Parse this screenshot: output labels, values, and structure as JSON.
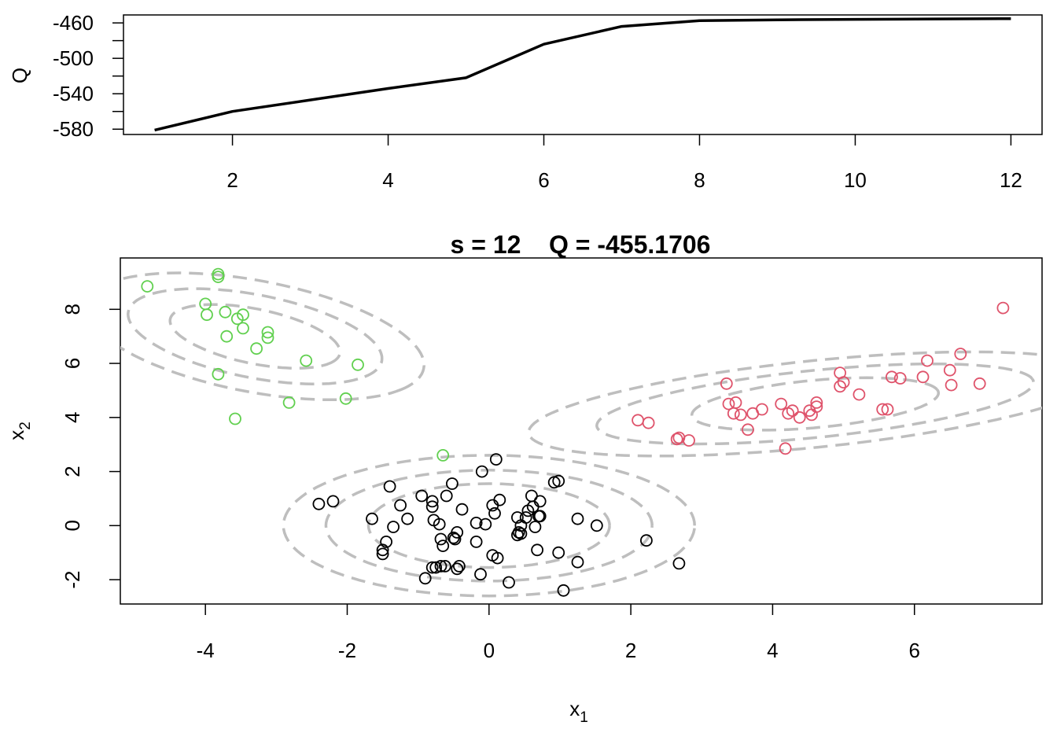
{
  "chart_data": [
    {
      "type": "line",
      "ylabel": "Q",
      "xlim": [
        0.6,
        12.4
      ],
      "ylim": [
        -586,
        -451
      ],
      "xticks": [
        2,
        4,
        6,
        8,
        10,
        12
      ],
      "yticks": [
        -460,
        -500,
        -540,
        -580
      ],
      "ytick_labels": [
        "-460",
        "-500",
        "-540",
        "-580"
      ],
      "xtick_labels": [
        "2",
        "4",
        "6",
        "8",
        "10",
        "12"
      ],
      "x": [
        1,
        2,
        3,
        4,
        5,
        6,
        7,
        8,
        9,
        10,
        11,
        12
      ],
      "y": [
        -581,
        -560,
        -547,
        -534,
        -522,
        -484,
        -464,
        -457.5,
        -456.5,
        -456,
        -455.5,
        -455.2
      ],
      "line_color": "#000000"
    },
    {
      "type": "scatter",
      "title_s": "s = 12",
      "title_q": "Q = -455.1706",
      "xlabel": "x",
      "xlabel_sub": "1",
      "ylabel": "x",
      "ylabel_sub": "2",
      "xlim": [
        -5.2,
        7.8
      ],
      "ylim": [
        -2.9,
        9.9
      ],
      "xticks": [
        -4,
        -2,
        0,
        2,
        4,
        6
      ],
      "xtick_labels": [
        "-4",
        "-2",
        "0",
        "2",
        "4",
        "6"
      ],
      "yticks": [
        -2,
        0,
        2,
        4,
        6,
        8
      ],
      "ytick_labels": [
        "-2",
        "0",
        "2",
        "4",
        "6",
        "8"
      ],
      "contour_color": "#bebebe",
      "series": [
        {
          "color": "#000000",
          "points": [
            [
              -2.4,
              0.8
            ],
            [
              -2.2,
              0.9
            ],
            [
              -1.65,
              0.25
            ],
            [
              -1.5,
              -0.9
            ],
            [
              -1.5,
              -1.05
            ],
            [
              -1.45,
              -0.6
            ],
            [
              -1.4,
              1.45
            ],
            [
              -1.35,
              -0.05
            ],
            [
              -1.25,
              0.75
            ],
            [
              -1.15,
              0.25
            ],
            [
              -0.95,
              1.1
            ],
            [
              -0.9,
              -1.95
            ],
            [
              -0.8,
              -1.55
            ],
            [
              -0.8,
              0.7
            ],
            [
              -0.8,
              0.9
            ],
            [
              -0.78,
              0.2
            ],
            [
              -0.75,
              -1.55
            ],
            [
              -0.7,
              0.05
            ],
            [
              -0.68,
              -1.5
            ],
            [
              -0.68,
              -0.5
            ],
            [
              -0.65,
              -0.75
            ],
            [
              -0.62,
              -1.5
            ],
            [
              -0.6,
              1.1
            ],
            [
              -0.52,
              1.55
            ],
            [
              -0.5,
              -0.45
            ],
            [
              -0.48,
              -0.5
            ],
            [
              -0.45,
              -0.25
            ],
            [
              -0.45,
              -1.6
            ],
            [
              -0.42,
              -1.5
            ],
            [
              -0.38,
              0.6
            ],
            [
              -0.18,
              -0.6
            ],
            [
              -0.18,
              0.1
            ],
            [
              -0.12,
              -1.8
            ],
            [
              -0.1,
              2.0
            ],
            [
              -0.05,
              0.05
            ],
            [
              0.05,
              -1.1
            ],
            [
              0.05,
              0.75
            ],
            [
              0.08,
              0.45
            ],
            [
              0.1,
              2.45
            ],
            [
              0.12,
              -1.2
            ],
            [
              0.15,
              0.95
            ],
            [
              0.28,
              -2.1
            ],
            [
              0.4,
              0.3
            ],
            [
              0.4,
              -0.35
            ],
            [
              0.42,
              -0.25
            ],
            [
              0.45,
              -0.3
            ],
            [
              0.45,
              0.0
            ],
            [
              0.52,
              0.3
            ],
            [
              0.55,
              0.55
            ],
            [
              0.6,
              1.1
            ],
            [
              0.62,
              0.7
            ],
            [
              0.65,
              -0.05
            ],
            [
              0.68,
              -0.9
            ],
            [
              0.7,
              0.35
            ],
            [
              0.72,
              0.35
            ],
            [
              0.72,
              0.9
            ],
            [
              0.92,
              1.6
            ],
            [
              0.98,
              1.65
            ],
            [
              0.98,
              -1.0
            ],
            [
              1.05,
              -2.4
            ],
            [
              1.25,
              -1.35
            ],
            [
              1.25,
              0.25
            ],
            [
              1.52,
              0.0
            ],
            [
              2.22,
              -0.55
            ],
            [
              2.68,
              -1.4
            ]
          ]
        },
        {
          "color": "#df536b",
          "points": [
            [
              2.1,
              3.9
            ],
            [
              2.25,
              3.8
            ],
            [
              2.65,
              3.2
            ],
            [
              2.68,
              3.25
            ],
            [
              2.82,
              3.15
            ],
            [
              3.35,
              5.25
            ],
            [
              3.38,
              4.5
            ],
            [
              3.45,
              4.15
            ],
            [
              3.48,
              4.55
            ],
            [
              3.55,
              4.1
            ],
            [
              3.65,
              3.55
            ],
            [
              3.72,
              4.15
            ],
            [
              3.85,
              4.3
            ],
            [
              4.12,
              4.5
            ],
            [
              4.18,
              2.85
            ],
            [
              4.22,
              4.15
            ],
            [
              4.28,
              4.25
            ],
            [
              4.38,
              4.0
            ],
            [
              4.52,
              4.25
            ],
            [
              4.55,
              4.1
            ],
            [
              4.62,
              4.4
            ],
            [
              4.62,
              4.55
            ],
            [
              4.95,
              5.15
            ],
            [
              4.95,
              5.65
            ],
            [
              5.0,
              5.3
            ],
            [
              5.22,
              4.85
            ],
            [
              5.55,
              4.3
            ],
            [
              5.62,
              4.3
            ],
            [
              5.68,
              5.5
            ],
            [
              5.8,
              5.45
            ],
            [
              6.12,
              5.5
            ],
            [
              6.18,
              6.1
            ],
            [
              6.5,
              5.75
            ],
            [
              6.52,
              5.2
            ],
            [
              6.65,
              6.35
            ],
            [
              6.92,
              5.25
            ],
            [
              7.25,
              8.05
            ]
          ]
        },
        {
          "color": "#61d04f",
          "points": [
            [
              -4.82,
              8.85
            ],
            [
              -4.0,
              8.2
            ],
            [
              -3.98,
              7.8
            ],
            [
              -3.82,
              9.3
            ],
            [
              -3.82,
              9.2
            ],
            [
              -3.82,
              5.6
            ],
            [
              -3.72,
              7.9
            ],
            [
              -3.7,
              7.0
            ],
            [
              -3.55,
              7.65
            ],
            [
              -3.47,
              7.8
            ],
            [
              -3.47,
              7.3
            ],
            [
              -3.58,
              3.95
            ],
            [
              -3.28,
              6.55
            ],
            [
              -3.12,
              7.15
            ],
            [
              -3.12,
              6.95
            ],
            [
              -2.82,
              4.55
            ],
            [
              -2.58,
              6.1
            ],
            [
              -2.02,
              4.7
            ],
            [
              -1.85,
              5.95
            ],
            [
              -0.65,
              2.6
            ]
          ]
        }
      ],
      "ellipses": [
        {
          "cx": 0.0,
          "cy": 0.0,
          "rx": [
            1.7,
            2.3,
            2.9
          ],
          "ry": [
            1.55,
            2.05,
            2.6
          ],
          "angle": 0
        },
        {
          "cx": 4.6,
          "cy": 4.5,
          "rx": [
            1.8,
            3.2,
            4.2
          ],
          "ry": [
            0.85,
            1.2,
            1.55
          ],
          "angle": 17
        },
        {
          "cx": -3.3,
          "cy": 7.0,
          "rx": [
            1.45,
            2.15,
            2.85
          ],
          "ry": [
            0.85,
            1.3,
            1.75
          ],
          "angle": -44
        }
      ]
    }
  ]
}
